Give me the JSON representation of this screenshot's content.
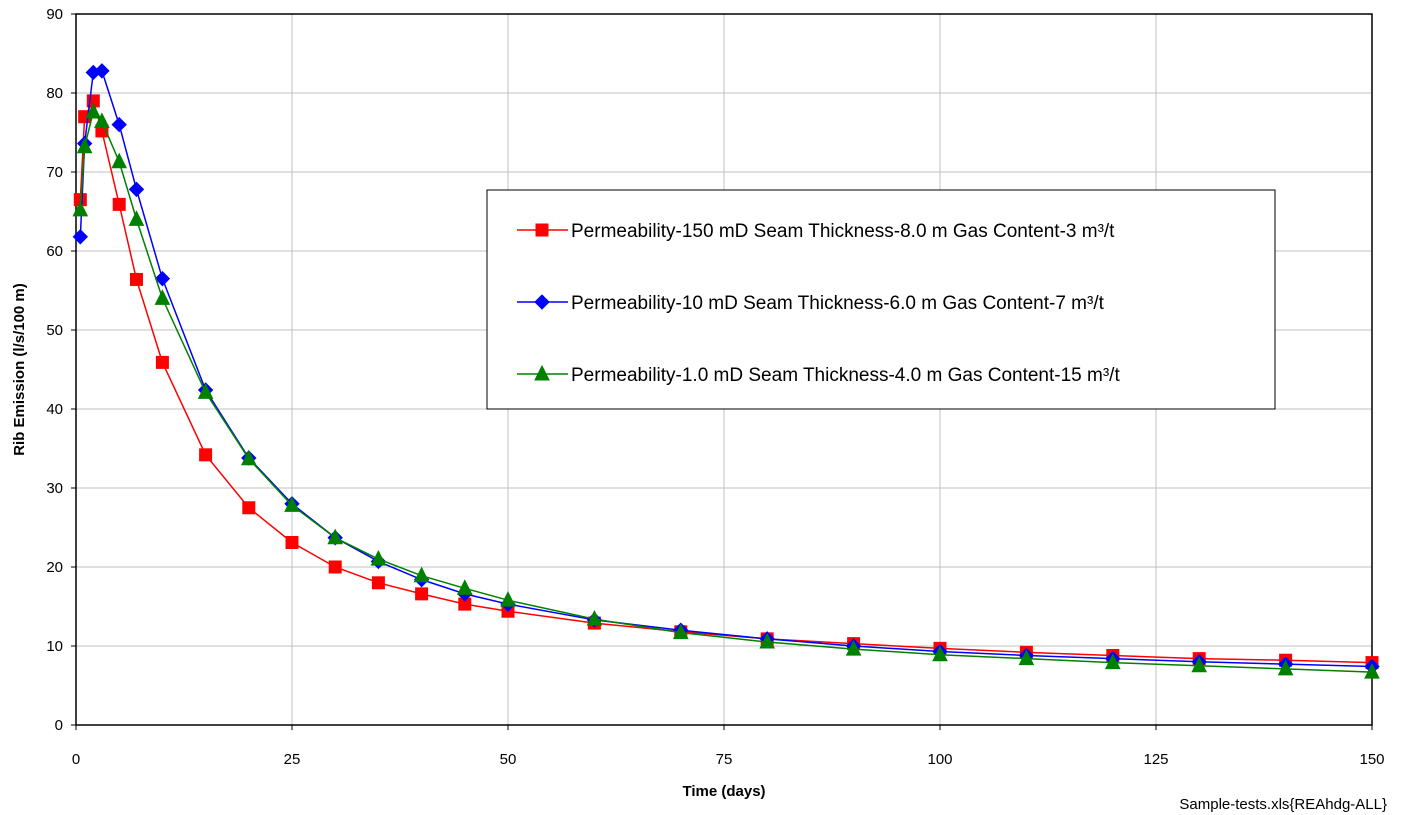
{
  "chart_data": {
    "type": "line",
    "xlabel": "Time (days)",
    "ylabel": "Rib Emission (l/s/100 m)",
    "xlim": [
      0,
      150
    ],
    "ylim": [
      0,
      90
    ],
    "xticks": [
      0,
      25,
      50,
      75,
      100,
      125,
      150
    ],
    "yticks": [
      0,
      10,
      20,
      30,
      40,
      50,
      60,
      70,
      80,
      90
    ],
    "grid": true,
    "legend_position": "right-center",
    "footnote": "Sample-tests.xls{REAhdg-ALL}",
    "series": [
      {
        "name": "Permeability-150 mD Seam Thickness-8.0 m Gas Content-3 m³/t",
        "color": "#ff0000",
        "marker": "square",
        "x": [
          0.5,
          1,
          2,
          3,
          5,
          7,
          10,
          15,
          20,
          25,
          30,
          35,
          40,
          45,
          50,
          60,
          70,
          80,
          90,
          100,
          110,
          120,
          130,
          140,
          150
        ],
        "y": [
          66.5,
          77,
          79,
          75.2,
          65.9,
          56.4,
          45.9,
          34.2,
          27.5,
          23.1,
          20,
          18,
          16.6,
          15.3,
          14.4,
          12.9,
          11.8,
          10.9,
          10.3,
          9.7,
          9.2,
          8.8,
          8.4,
          8.2,
          7.9
        ]
      },
      {
        "name": "Permeability-10 mD Seam Thickness-6.0 m Gas Content-7 m³/t",
        "color": "#0000ff",
        "marker": "diamond",
        "x": [
          0.5,
          1,
          2,
          3,
          5,
          7,
          10,
          15,
          20,
          25,
          30,
          35,
          40,
          45,
          50,
          60,
          70,
          80,
          90,
          100,
          110,
          120,
          130,
          140,
          150
        ],
        "y": [
          61.8,
          73.6,
          82.6,
          82.8,
          76,
          67.8,
          56.5,
          42.4,
          33.8,
          28,
          23.7,
          20.7,
          18.4,
          16.6,
          15.3,
          13.3,
          12,
          10.9,
          10,
          9.3,
          8.8,
          8.4,
          8,
          7.7,
          7.4
        ]
      },
      {
        "name": "Permeability-1.0 mD Seam Thickness-4.0 m Gas Content-15 m³/t",
        "color": "#008000",
        "marker": "triangle",
        "x": [
          0.5,
          1,
          2,
          3,
          5,
          7,
          10,
          15,
          20,
          25,
          30,
          35,
          40,
          45,
          50,
          60,
          70,
          80,
          90,
          100,
          110,
          120,
          130,
          140,
          150
        ],
        "y": [
          65.2,
          73.2,
          77.6,
          76.4,
          71.3,
          64,
          54,
          42.1,
          33.7,
          27.8,
          23.7,
          21,
          18.9,
          17.3,
          15.8,
          13.4,
          11.7,
          10.5,
          9.6,
          8.9,
          8.4,
          7.9,
          7.5,
          7.1,
          6.7
        ]
      }
    ]
  }
}
